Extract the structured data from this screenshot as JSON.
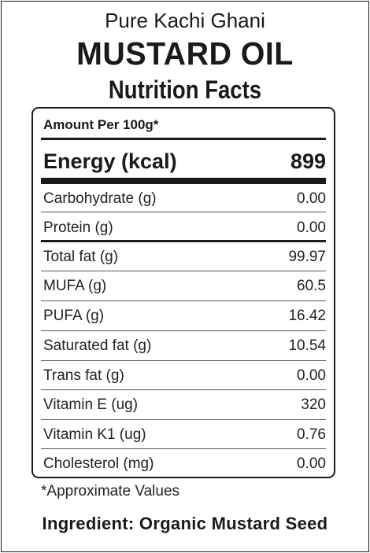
{
  "header": {
    "subtitle": "Pure Kachi Ghani",
    "product": "MUSTARD OIL",
    "heading": "Nutrition Facts"
  },
  "panel": {
    "amount_label": "Amount Per 100g*",
    "energy": {
      "label": "Energy (kcal)",
      "value": "899"
    },
    "rows": [
      {
        "label": "Carbohydrate (g)",
        "value": "0.00"
      },
      {
        "label": "Protein (g)",
        "value": "0.00"
      },
      {
        "label": "Total fat (g)",
        "value": "99.97"
      },
      {
        "label": "MUFA (g)",
        "value": "60.5"
      },
      {
        "label": "PUFA (g)",
        "value": "16.42"
      },
      {
        "label": "Saturated fat (g)",
        "value": "10.54"
      },
      {
        "label": "Trans fat (g)",
        "value": "0.00"
      },
      {
        "label": "Vitamin E (ug)",
        "value": "320"
      },
      {
        "label": "Vitamin K1 (ug)",
        "value": "0.76"
      },
      {
        "label": "Cholesterol (mg)",
        "value": "0.00"
      }
    ]
  },
  "footer": {
    "note": "*Approximate Values",
    "ingredient": "Ingredient: Organic Mustard Seed"
  }
}
